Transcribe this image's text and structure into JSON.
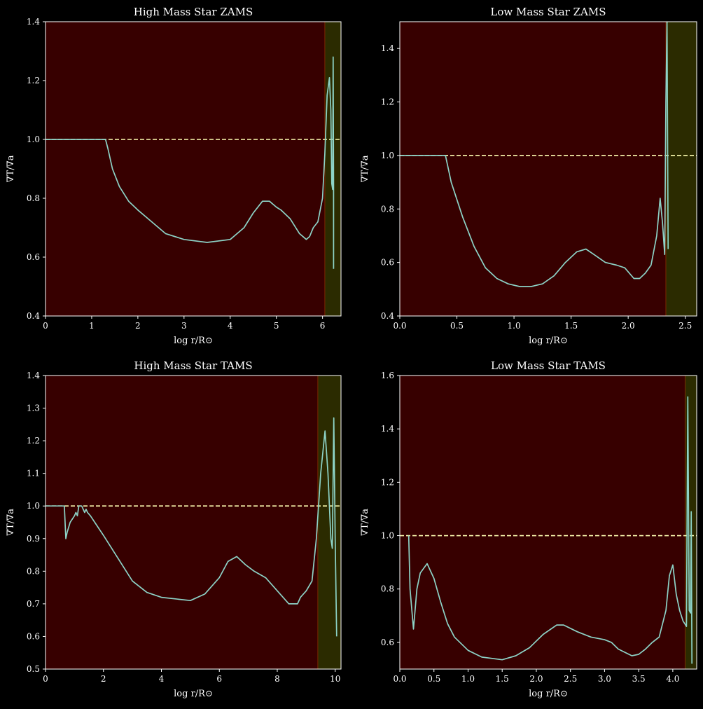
{
  "colors": {
    "background": "#000000",
    "radiative_zone": "#370000",
    "convective_zone": "#2b2b00",
    "zone_edge": "#7a2a00",
    "curve": "#8dd3c7",
    "reference_line": "#ffffb3",
    "axis": "#ffffff"
  },
  "chart_data": [
    {
      "type": "line",
      "title": "High Mass Star ZAMS",
      "xlabel": "log r/R⊙",
      "ylabel": "∇T/∇a",
      "xlim": [
        0,
        6.4
      ],
      "ylim": [
        0.4,
        1.4
      ],
      "xticks": [
        0,
        1,
        2,
        3,
        4,
        5,
        6
      ],
      "xtick_labels": [
        "0",
        "1",
        "2",
        "3",
        "4",
        "5",
        "6"
      ],
      "yticks": [
        0.4,
        0.6,
        0.8,
        1.0,
        1.2,
        1.4
      ],
      "ytick_labels": [
        "0.4",
        "0.6",
        "0.8",
        "1.0",
        "1.2",
        "1.4"
      ],
      "reference_y": 1.0,
      "radiative_span": [
        0,
        6.05
      ],
      "convective_span": [
        6.05,
        6.4
      ],
      "series": [
        {
          "x": [
            0,
            1.3,
            1.35,
            1.45,
            1.6,
            1.8,
            2.0,
            2.3,
            2.6,
            3.0,
            3.5,
            4.0,
            4.3,
            4.5,
            4.7,
            4.85,
            5.0,
            5.1,
            5.3,
            5.5,
            5.65,
            5.72,
            5.8,
            5.9,
            6.0,
            6.05,
            6.1,
            6.15,
            6.18,
            6.2,
            6.22,
            6.23,
            6.24,
            6.24
          ],
          "y": [
            1.0,
            1.0,
            0.97,
            0.9,
            0.84,
            0.79,
            0.76,
            0.72,
            0.68,
            0.66,
            0.65,
            0.66,
            0.7,
            0.75,
            0.79,
            0.79,
            0.77,
            0.76,
            0.73,
            0.68,
            0.66,
            0.67,
            0.7,
            0.72,
            0.8,
            0.95,
            1.15,
            1.21,
            1.1,
            0.85,
            0.83,
            1.28,
            0.85,
            0.56
          ]
        }
      ]
    },
    {
      "type": "line",
      "title": "Low Mass Star ZAMS",
      "xlabel": "log r/R⊙",
      "ylabel": "∇T/∇a",
      "xlim": [
        0,
        2.6
      ],
      "ylim": [
        0.4,
        1.5
      ],
      "xticks": [
        0,
        0.5,
        1.0,
        1.5,
        2.0,
        2.5
      ],
      "xtick_labels": [
        "0.0",
        "0.5",
        "1.0",
        "1.5",
        "2.0",
        "2.5"
      ],
      "yticks": [
        0.4,
        0.6,
        0.8,
        1.0,
        1.2,
        1.4
      ],
      "ytick_labels": [
        "0.4",
        "0.6",
        "0.8",
        "1.0",
        "1.2",
        "1.4"
      ],
      "reference_y": 1.0,
      "radiative_span": [
        0,
        2.33
      ],
      "convective_span": [
        2.33,
        2.6
      ],
      "series": [
        {
          "x": [
            0,
            0.4,
            0.45,
            0.55,
            0.65,
            0.75,
            0.85,
            0.95,
            1.05,
            1.15,
            1.25,
            1.35,
            1.45,
            1.55,
            1.63,
            1.7,
            1.8,
            1.9,
            1.97,
            2.05,
            2.1,
            2.15,
            2.2,
            2.25,
            2.28,
            2.3,
            2.32,
            2.33,
            2.34,
            2.35
          ],
          "y": [
            1.0,
            1.0,
            0.9,
            0.77,
            0.66,
            0.58,
            0.54,
            0.52,
            0.51,
            0.51,
            0.52,
            0.55,
            0.6,
            0.64,
            0.65,
            0.63,
            0.6,
            0.59,
            0.58,
            0.54,
            0.54,
            0.56,
            0.59,
            0.7,
            0.84,
            0.75,
            0.63,
            1.2,
            1.5,
            0.65
          ]
        }
      ]
    },
    {
      "type": "line",
      "title": "High Mass Star TAMS",
      "xlabel": "log r/R⊙",
      "ylabel": "∇T/∇a",
      "xlim": [
        0,
        10.2
      ],
      "ylim": [
        0.5,
        1.4
      ],
      "xticks": [
        0,
        2,
        4,
        6,
        8,
        10
      ],
      "xtick_labels": [
        "0",
        "2",
        "4",
        "6",
        "8",
        "10"
      ],
      "yticks": [
        0.5,
        0.6,
        0.7,
        0.8,
        0.9,
        1.0,
        1.1,
        1.2,
        1.3,
        1.4
      ],
      "ytick_labels": [
        "0.5",
        "0.6",
        "0.7",
        "0.8",
        "0.9",
        "1.0",
        "1.1",
        "1.2",
        "1.3",
        "1.4"
      ],
      "reference_y": 1.0,
      "radiative_span": [
        0,
        9.4
      ],
      "convective_span": [
        9.4,
        10.2
      ],
      "series": [
        {
          "x": [
            0,
            0.65,
            0.7,
            0.75,
            0.85,
            1.0,
            1.05,
            1.1,
            1.15,
            1.2,
            1.25,
            1.35,
            1.4,
            1.45,
            1.55,
            1.7,
            2.0,
            2.5,
            3.0,
            3.5,
            4.0,
            5.0,
            5.5,
            6.0,
            6.3,
            6.6,
            6.9,
            7.2,
            7.6,
            8.0,
            8.4,
            8.7,
            8.8,
            9.0,
            9.2,
            9.35,
            9.5,
            9.65,
            9.75,
            9.85,
            9.9,
            9.95,
            10.0,
            10.05
          ],
          "y": [
            1.0,
            1.0,
            0.9,
            0.92,
            0.95,
            0.97,
            0.98,
            0.97,
            1.0,
            1.0,
            1.0,
            0.98,
            0.99,
            0.98,
            0.97,
            0.95,
            0.91,
            0.84,
            0.77,
            0.735,
            0.72,
            0.71,
            0.73,
            0.78,
            0.83,
            0.845,
            0.82,
            0.8,
            0.78,
            0.74,
            0.7,
            0.7,
            0.72,
            0.74,
            0.77,
            0.9,
            1.1,
            1.23,
            1.1,
            0.9,
            0.87,
            1.27,
            0.9,
            0.6
          ]
        }
      ]
    },
    {
      "type": "line",
      "title": "Low Mass Star TAMS",
      "xlabel": "log r/R⊙",
      "ylabel": "∇T/∇a",
      "xlim": [
        0,
        4.35
      ],
      "ylim": [
        0.5,
        1.6
      ],
      "xticks": [
        0,
        0.5,
        1.0,
        1.5,
        2.0,
        2.5,
        3.0,
        3.5,
        4.0
      ],
      "xtick_labels": [
        "0.0",
        "0.5",
        "1.0",
        "1.5",
        "2.0",
        "2.5",
        "3.0",
        "3.5",
        "4.0"
      ],
      "yticks": [
        0.6,
        0.8,
        1.0,
        1.2,
        1.4,
        1.6
      ],
      "ytick_labels": [
        "0.6",
        "0.8",
        "1.0",
        "1.2",
        "1.4",
        "1.6"
      ],
      "reference_y": 1.0,
      "radiative_span": [
        0,
        4.18
      ],
      "convective_span": [
        4.18,
        4.35
      ],
      "series": [
        {
          "x": [
            0.13,
            0.15,
            0.2,
            0.25,
            0.3,
            0.4,
            0.5,
            0.6,
            0.7,
            0.8,
            1.0,
            1.2,
            1.5,
            1.7,
            1.9,
            2.1,
            2.3,
            2.4,
            2.6,
            2.8,
            3.0,
            3.1,
            3.2,
            3.4,
            3.5,
            3.6,
            3.7,
            3.8,
            3.9,
            3.95,
            4.0,
            4.05,
            4.1,
            4.15,
            4.2,
            4.22,
            4.24,
            4.26,
            4.27,
            4.28
          ],
          "y": [
            1.0,
            0.8,
            0.65,
            0.8,
            0.86,
            0.895,
            0.84,
            0.75,
            0.67,
            0.62,
            0.57,
            0.545,
            0.535,
            0.55,
            0.58,
            0.63,
            0.665,
            0.665,
            0.64,
            0.62,
            0.61,
            0.6,
            0.575,
            0.55,
            0.555,
            0.575,
            0.6,
            0.62,
            0.72,
            0.85,
            0.89,
            0.78,
            0.72,
            0.68,
            0.66,
            1.52,
            0.72,
            0.71,
            1.09,
            0.52
          ]
        }
      ]
    }
  ]
}
